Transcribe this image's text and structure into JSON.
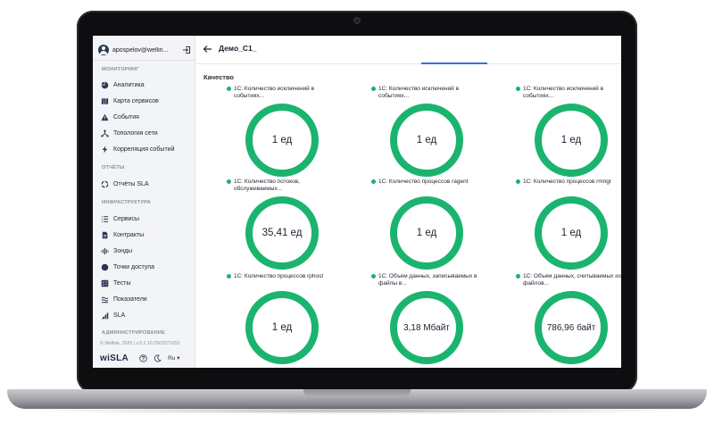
{
  "sidebar": {
    "user": "apospelov@wellin...",
    "sections": [
      {
        "title": "МОНИТОРИНГ",
        "items": [
          {
            "label": "Аналитика",
            "icon": "pie-chart-icon"
          },
          {
            "label": "Карта сервисов",
            "icon": "map-icon"
          },
          {
            "label": "События",
            "icon": "warning-icon"
          },
          {
            "label": "Топология сети",
            "icon": "topology-icon"
          },
          {
            "label": "Корреляция событий",
            "icon": "lightning-icon"
          }
        ]
      },
      {
        "title": "ОТЧЁТЫ",
        "items": [
          {
            "label": "Отчёты SLA",
            "icon": "report-ring-icon"
          }
        ]
      },
      {
        "title": "ИНФРАСТРУКТУРА",
        "items": [
          {
            "label": "Сервисы",
            "icon": "list-icon"
          },
          {
            "label": "Контракты",
            "icon": "document-icon"
          },
          {
            "label": "Зонды",
            "icon": "signal-icon"
          },
          {
            "label": "Точки доступа",
            "icon": "globe-icon"
          },
          {
            "label": "Тесты",
            "icon": "checklist-icon"
          },
          {
            "label": "Показатели",
            "icon": "metrics-icon"
          },
          {
            "label": "SLA",
            "icon": "sla-icon"
          }
        ]
      },
      {
        "title": "АДМИНИСТРИРОВАНИЕ",
        "items": []
      }
    ],
    "footer": {
      "copyright": "© Wellink, 2025 | v.5.2.10.2503271053",
      "logo": "wiSLA",
      "language": "Ru"
    }
  },
  "header": {
    "title": "Демо_С1_"
  },
  "section_heading": "Качество",
  "accent_color": "#1bb46e",
  "widgets": [
    {
      "title": "1С: Количество исключений в событиях...",
      "value": "1 ед"
    },
    {
      "title": "1С: Количество исключений в событиях...",
      "value": "1 ед"
    },
    {
      "title": "1С: Количество исключений в событиях...",
      "value": "1 ед"
    },
    {
      "title": "1С: Количество потоков, обслуживаемых...",
      "value": "35,41 ед"
    },
    {
      "title": "1С: Количество процессов ragent",
      "value": "1 ед"
    },
    {
      "title": "1С: Количество процессов rmngr",
      "value": "1 ед"
    },
    {
      "title": "1С: Количество процессов rphost",
      "value": "1 ед"
    },
    {
      "title": "1С: Объем данных, записываемых в файлы в...",
      "value": "3,18 Мбайт"
    },
    {
      "title": "1С: Объем данных, считываемых из файлов...",
      "value": "786,96 байт"
    }
  ]
}
